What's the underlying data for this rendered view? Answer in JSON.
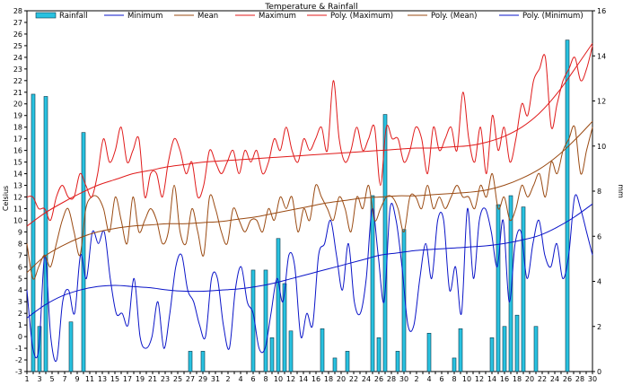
{
  "chart_data": {
    "type": "bar+line",
    "title": "Temperature & Rainfall",
    "ylabel_left": "Celsius",
    "ylabel_right": "mm",
    "ylim_left": [
      -3,
      28
    ],
    "ylim_right": [
      0,
      16
    ],
    "left_ticks": [
      "-3",
      "-2",
      "-1",
      "0",
      "1",
      "2",
      "3",
      "4",
      "5",
      "6",
      "7",
      "8",
      "9",
      "10",
      "11",
      "12",
      "13",
      "14",
      "15",
      "16",
      "17",
      "18",
      "19",
      "20",
      "21",
      "22",
      "23",
      "24",
      "25",
      "26",
      "27",
      "28"
    ],
    "right_ticks": [
      "0",
      "2",
      "4",
      "6",
      "8",
      "10",
      "12",
      "14",
      "16"
    ],
    "x_tick_labels": [
      "1",
      "3",
      "5",
      "7",
      "9",
      "11",
      "13",
      "15",
      "17",
      "19",
      "21",
      "23",
      "25",
      "27",
      "29",
      "31",
      "2",
      "4",
      "6",
      "8",
      "10",
      "12",
      "14",
      "16",
      "18",
      "20",
      "22",
      "24",
      "26",
      "28",
      "30",
      "2",
      "4",
      "6",
      "8",
      "10",
      "12",
      "14",
      "16",
      "18",
      "20",
      "22",
      "24",
      "26",
      "28",
      "30"
    ],
    "legend": [
      "Rainfall",
      "Minimum",
      "Mean",
      "Maximum",
      "Poly. (Maximum)",
      "Poly. (Mean)",
      "Poly. (Minimum)"
    ],
    "colors": {
      "rainfall": "#29c2e0",
      "rainfall_edge": "#08384a",
      "minimum": "#0a14c8",
      "mean": "#9a4a12",
      "maximum": "#e01a1a",
      "poly_maximum": "#e01a1a",
      "poly_mean": "#9a4a12",
      "poly_minimum": "#0a14c8"
    },
    "series": [
      {
        "name": "Rainfall",
        "axis": "right",
        "kind": "bar",
        "points": [
          [
            2,
            12.3
          ],
          [
            3,
            2.0
          ],
          [
            4,
            12.2
          ],
          [
            8,
            2.2
          ],
          [
            10,
            10.6
          ],
          [
            27,
            0.9
          ],
          [
            29,
            0.9
          ],
          [
            37,
            4.5
          ],
          [
            39,
            4.5
          ],
          [
            40,
            1.5
          ],
          [
            41,
            5.9
          ],
          [
            42,
            3.9
          ],
          [
            43,
            1.8
          ],
          [
            48,
            1.9
          ],
          [
            50,
            0.6
          ],
          [
            52,
            0.9
          ],
          [
            56,
            7.8
          ],
          [
            57,
            1.5
          ],
          [
            58,
            11.4
          ],
          [
            60,
            0.9
          ],
          [
            61,
            6.3
          ],
          [
            65,
            1.7
          ],
          [
            69,
            0.6
          ],
          [
            70,
            1.9
          ],
          [
            75,
            1.5
          ],
          [
            76,
            7.4
          ],
          [
            77,
            2.0
          ],
          [
            78,
            7.8
          ],
          [
            79,
            2.5
          ],
          [
            80,
            7.3
          ],
          [
            82,
            2.0
          ],
          [
            87,
            14.7
          ]
        ]
      },
      {
        "name": "Minimum",
        "axis": "left",
        "kind": "line",
        "values": [
          4,
          -1,
          -1,
          7,
          0,
          -2,
          3,
          4,
          2,
          7,
          5,
          9,
          8,
          9,
          5,
          2,
          2,
          1,
          5,
          0,
          -1,
          0,
          3,
          -1,
          2,
          6,
          7,
          4,
          3,
          1,
          0,
          5,
          5,
          1,
          -1,
          4,
          6,
          3,
          2,
          -1,
          -1,
          2,
          5,
          3,
          7,
          6,
          0,
          2,
          1,
          7,
          8,
          10,
          7,
          4,
          8,
          3,
          2,
          5,
          11,
          7,
          3,
          11,
          10,
          6,
          1,
          1,
          5,
          8,
          5,
          10,
          10,
          4,
          6,
          2,
          11,
          5,
          10,
          11,
          9,
          6,
          10,
          3,
          8,
          9,
          5,
          8,
          10,
          7,
          6,
          8,
          5,
          7,
          12,
          11,
          9,
          7
        ]
      },
      {
        "name": "Mean",
        "axis": "left",
        "kind": "line",
        "values": [
          8,
          5,
          6,
          7,
          6,
          8,
          10,
          11,
          9,
          7,
          11,
          12,
          12,
          11,
          9,
          12,
          10,
          8,
          12,
          9,
          10,
          11,
          10,
          8,
          9,
          13,
          9,
          8,
          11,
          9,
          7,
          12,
          11,
          9,
          8,
          11,
          10,
          9,
          10,
          10,
          9,
          11,
          10,
          12,
          11,
          12,
          9,
          11,
          10,
          13,
          12,
          11,
          10,
          12,
          11,
          9,
          12,
          11,
          13,
          10,
          11,
          12,
          12,
          11,
          9,
          12,
          12,
          11,
          13,
          11,
          12,
          11,
          12,
          13,
          12,
          12,
          11,
          13,
          12,
          14,
          11,
          12,
          10,
          11,
          13,
          12,
          13,
          14,
          12,
          15,
          14,
          16,
          17,
          18,
          14,
          16,
          18
        ]
      },
      {
        "name": "Maximum",
        "axis": "left",
        "kind": "line",
        "values": [
          12,
          12,
          11,
          11,
          10,
          12,
          13,
          12,
          12,
          14,
          13,
          12,
          14,
          17,
          15,
          16,
          18,
          15,
          16,
          17,
          12,
          14,
          14,
          12,
          15,
          17,
          16,
          14,
          15,
          12,
          13,
          16,
          15,
          14,
          15,
          16,
          14,
          16,
          15,
          16,
          14,
          15,
          17,
          16,
          18,
          16,
          15,
          17,
          16,
          17,
          18,
          16,
          22,
          17,
          15,
          16,
          18,
          16,
          17,
          18,
          13,
          18,
          17,
          17,
          15,
          16,
          18,
          17,
          14,
          18,
          16,
          17,
          18,
          16,
          21,
          17,
          15,
          18,
          14,
          19,
          16,
          18,
          15,
          17,
          20,
          19,
          22,
          23,
          24,
          18,
          20,
          22,
          23,
          24,
          22,
          23,
          25
        ]
      },
      {
        "name": "Poly. (Maximum)",
        "axis": "left",
        "kind": "trend",
        "values": [
          9.5,
          10.6,
          11.5,
          12.3,
          13.0,
          13.5,
          14.0,
          14.3,
          14.6,
          14.8,
          15.0,
          15.1,
          15.2,
          15.3,
          15.4,
          15.5,
          15.6,
          15.7,
          15.8,
          15.9,
          16.0,
          16.1,
          16.2,
          16.2,
          16.3,
          16.4,
          16.7,
          17.2,
          18.0,
          19.2,
          20.9,
          23.0,
          25.2
        ]
      },
      {
        "name": "Poly. (Mean)",
        "axis": "left",
        "kind": "trend",
        "values": [
          5.5,
          6.9,
          7.8,
          8.5,
          9.0,
          9.3,
          9.5,
          9.6,
          9.7,
          9.7,
          9.8,
          9.9,
          10.1,
          10.3,
          10.6,
          10.9,
          11.2,
          11.5,
          11.7,
          11.9,
          12.0,
          12.1,
          12.1,
          12.2,
          12.3,
          12.4,
          12.6,
          13.0,
          13.6,
          14.4,
          15.5,
          16.9,
          18.5
        ]
      },
      {
        "name": "Poly. (Minimum)",
        "axis": "left",
        "kind": "trend",
        "values": [
          1.6,
          2.7,
          3.5,
          4.0,
          4.3,
          4.4,
          4.3,
          4.2,
          4.0,
          3.9,
          3.9,
          4.0,
          4.1,
          4.3,
          4.6,
          5.0,
          5.4,
          5.8,
          6.2,
          6.6,
          7.0,
          7.2,
          7.4,
          7.5,
          7.6,
          7.7,
          7.8,
          8.0,
          8.3,
          8.7,
          9.4,
          10.3,
          11.4
        ]
      }
    ]
  }
}
